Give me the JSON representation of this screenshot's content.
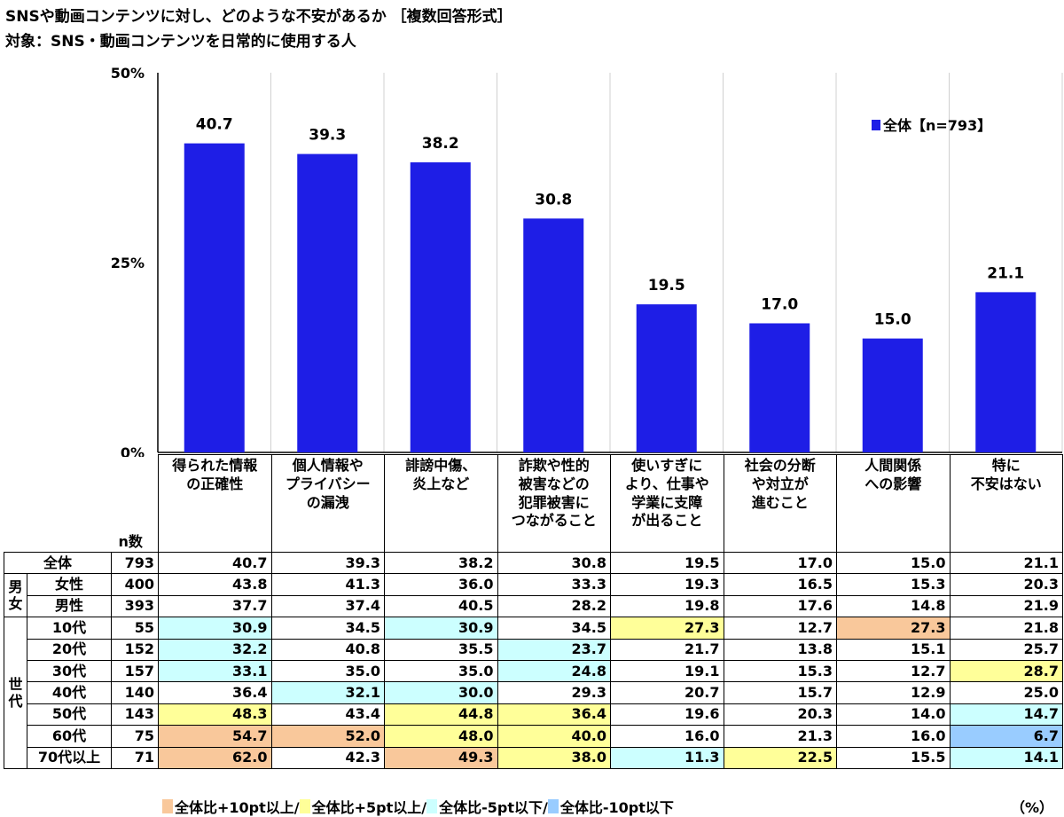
{
  "title": "SNSや動画コンテンツに対し、どのような不安があるか ［複数回答形式］",
  "subtitle": "対象：SNS・動画コンテンツを日常的に使用する人",
  "colors": {
    "bar": "#1E1EE6",
    "plus10": "#F9C89B",
    "plus5": "#FFFF99",
    "minus5": "#CCFFFF",
    "minus10": "#99CCFF"
  },
  "chart_data": {
    "type": "bar",
    "categories": [
      "得られた情報\nの正確性",
      "個人情報や\nプライバシー\nの漏洩",
      "誹謗中傷、\n炎上など",
      "詐欺や性的\n被害などの\n犯罪被害に\nつながること",
      "使いすぎに\nより、仕事や\n学業に支障\nが出ること",
      "社会の分断\nや対立が\n進むこと",
      "人間関係\nへの影響",
      "特に\n不安はない"
    ],
    "series": [
      {
        "name": "全体【n=793】",
        "values": [
          40.7,
          39.3,
          38.2,
          30.8,
          19.5,
          17.0,
          15.0,
          21.1
        ]
      }
    ],
    "ylim": [
      0,
      50
    ],
    "yticks": [
      "0%",
      "25%",
      "50%"
    ],
    "legend": "top-right",
    "grid": "vertical"
  },
  "table": {
    "n_header": "n数",
    "rows": [
      {
        "group": "",
        "label": "全体",
        "n": "793",
        "values": [
          "40.7",
          "39.3",
          "38.2",
          "30.8",
          "19.5",
          "17.0",
          "15.0",
          "21.1"
        ],
        "hl": [
          "",
          "",
          "",
          "",
          "",
          "",
          "",
          ""
        ]
      },
      {
        "group": "男女",
        "label": "女性",
        "n": "400",
        "values": [
          "43.8",
          "41.3",
          "36.0",
          "33.3",
          "19.3",
          "16.5",
          "15.3",
          "20.3"
        ],
        "hl": [
          "",
          "",
          "",
          "",
          "",
          "",
          "",
          ""
        ]
      },
      {
        "group": "",
        "label": "男性",
        "n": "393",
        "values": [
          "37.7",
          "37.4",
          "40.5",
          "28.2",
          "19.8",
          "17.6",
          "14.8",
          "21.9"
        ],
        "hl": [
          "",
          "",
          "",
          "",
          "",
          "",
          "",
          ""
        ]
      },
      {
        "group": "世代",
        "label": "10代",
        "n": "55",
        "values": [
          "30.9",
          "34.5",
          "30.9",
          "34.5",
          "27.3",
          "12.7",
          "27.3",
          "21.8"
        ],
        "hl": [
          "minus5",
          "",
          "minus5",
          "",
          "plus5",
          "",
          "plus10",
          ""
        ]
      },
      {
        "group": "",
        "label": "20代",
        "n": "152",
        "values": [
          "32.2",
          "40.8",
          "35.5",
          "23.7",
          "21.7",
          "13.8",
          "15.1",
          "25.7"
        ],
        "hl": [
          "minus5",
          "",
          "",
          "minus5",
          "",
          "",
          "",
          ""
        ]
      },
      {
        "group": "",
        "label": "30代",
        "n": "157",
        "values": [
          "33.1",
          "35.0",
          "35.0",
          "24.8",
          "19.1",
          "15.3",
          "12.7",
          "28.7"
        ],
        "hl": [
          "minus5",
          "",
          "",
          "minus5",
          "",
          "",
          "",
          "plus5"
        ]
      },
      {
        "group": "",
        "label": "40代",
        "n": "140",
        "values": [
          "36.4",
          "32.1",
          "30.0",
          "29.3",
          "20.7",
          "15.7",
          "12.9",
          "25.0"
        ],
        "hl": [
          "",
          "minus5",
          "minus5",
          "",
          "",
          "",
          "",
          ""
        ]
      },
      {
        "group": "",
        "label": "50代",
        "n": "143",
        "values": [
          "48.3",
          "43.4",
          "44.8",
          "36.4",
          "19.6",
          "20.3",
          "14.0",
          "14.7"
        ],
        "hl": [
          "plus5",
          "",
          "plus5",
          "plus5",
          "",
          "",
          "",
          "minus5"
        ]
      },
      {
        "group": "",
        "label": "60代",
        "n": "75",
        "values": [
          "54.7",
          "52.0",
          "48.0",
          "40.0",
          "16.0",
          "21.3",
          "16.0",
          "6.7"
        ],
        "hl": [
          "plus10",
          "plus10",
          "plus5",
          "plus5",
          "",
          "",
          "",
          "minus10"
        ]
      },
      {
        "group": "",
        "label": "70代以上",
        "n": "71",
        "values": [
          "62.0",
          "42.3",
          "49.3",
          "38.0",
          "11.3",
          "22.5",
          "15.5",
          "14.1"
        ],
        "hl": [
          "plus10",
          "",
          "plus10",
          "plus5",
          "minus5",
          "plus5",
          "",
          "minus5"
        ]
      }
    ]
  },
  "legend": [
    {
      "key": "plus10",
      "label": "全体比+10pt以上/"
    },
    {
      "key": "plus5",
      "label": "全体比+5pt以上/"
    },
    {
      "key": "minus5",
      "label": "全体比-5pt以下/"
    },
    {
      "key": "minus10",
      "label": "全体比-10pt以下"
    }
  ],
  "unit": "（%）"
}
